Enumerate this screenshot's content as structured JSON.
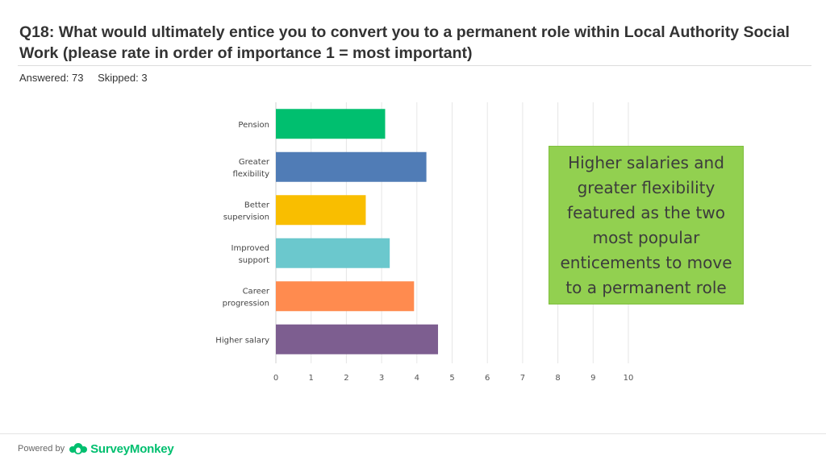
{
  "question": {
    "title": "Q18: What would ultimately entice you to convert you to a permanent role within Local Authority Social Work (please rate in order of importance 1 = most important)",
    "answered": "Answered: 73",
    "skipped": "Skipped: 3"
  },
  "callout": {
    "text": "Higher salaries and greater flexibility featured as the two most popular enticements to move to a permanent role"
  },
  "footer": {
    "powered_by": "Powered by",
    "brand": "SurveyMonkey",
    "brand_color": "#00bf6f"
  },
  "chart_data": {
    "type": "bar",
    "orientation": "horizontal",
    "categories": [
      [
        "Pension"
      ],
      [
        "Greater",
        "flexibility"
      ],
      [
        "Better",
        "supervision"
      ],
      [
        "Improved",
        "support"
      ],
      [
        "Career",
        "progression"
      ],
      [
        "Higher salary"
      ]
    ],
    "values": [
      3.1,
      4.27,
      2.55,
      3.23,
      3.92,
      4.6
    ],
    "colors": [
      "#00bf6f",
      "#507cb6",
      "#f9be00",
      "#6bc8cd",
      "#ff8b4f",
      "#7d5e90"
    ],
    "xlim": [
      0,
      10
    ],
    "xticks": [
      "0",
      "1",
      "2",
      "3",
      "4",
      "5",
      "6",
      "7",
      "8",
      "9",
      "10"
    ],
    "grid": true
  }
}
